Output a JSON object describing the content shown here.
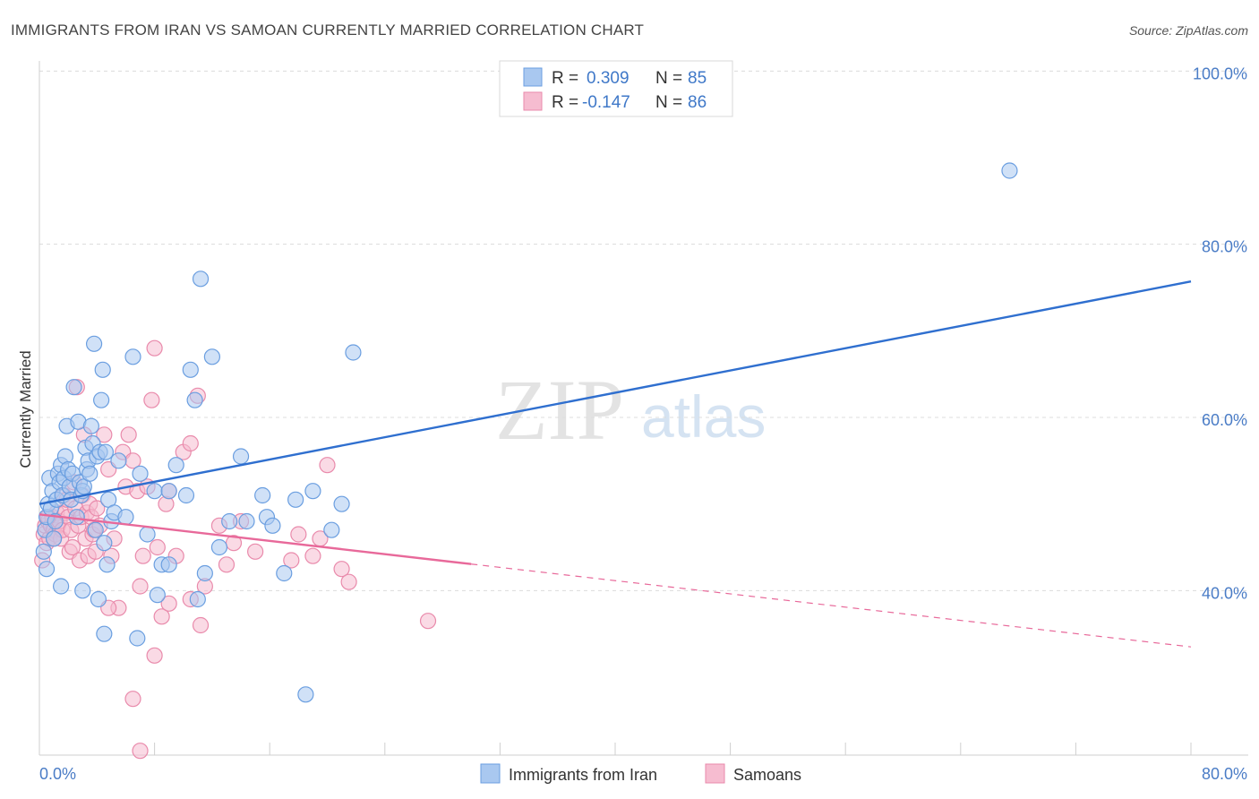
{
  "title": "IMMIGRANTS FROM IRAN VS SAMOAN CURRENTLY MARRIED CORRELATION CHART",
  "source": "Source: ZipAtlas.com",
  "watermark": {
    "zip": "ZIP",
    "atlas": "atlas"
  },
  "legend": {
    "r_label": "R =",
    "n_label": "N =",
    "rows": [
      {
        "r": "0.309",
        "n": "85",
        "color": "#a9c8f0",
        "stroke": "#6a9ee0"
      },
      {
        "r": "-0.147",
        "n": "86",
        "color": "#f6bcd0",
        "stroke": "#e98aab"
      }
    ]
  },
  "bottom_legend": [
    {
      "label": "Immigrants from Iran",
      "color": "#a9c8f0",
      "stroke": "#6a9ee0"
    },
    {
      "label": "Samoans",
      "color": "#f6bcd0",
      "stroke": "#e98aab"
    }
  ],
  "chart_data": {
    "type": "scatter",
    "title": "IMMIGRANTS FROM IRAN VS SAMOAN CURRENTLY MARRIED CORRELATION CHART",
    "xlabel": "",
    "ylabel": "Currently Married",
    "xlim": [
      0,
      80
    ],
    "ylim": [
      21,
      102
    ],
    "x_ticks": [
      "0.0%",
      "80.0%"
    ],
    "y_ticks": [
      {
        "value": 40,
        "label": "40.0%"
      },
      {
        "value": 60,
        "label": "60.0%"
      },
      {
        "value": 80,
        "label": "80.0%"
      },
      {
        "value": 100,
        "label": "100.0%"
      }
    ],
    "grid": true,
    "series": [
      {
        "name": "Immigrants from Iran",
        "color": "#a9c8f0",
        "stroke": "#6a9ee0",
        "line_color": "#2f6fcf",
        "trend": {
          "x0": 0,
          "y0": 50.0,
          "x1": 80,
          "y1": 75.7,
          "dash_from": null
        },
        "points": [
          [
            0.3,
            44.5
          ],
          [
            0.4,
            47.0
          ],
          [
            0.5,
            48.5
          ],
          [
            0.6,
            50.0
          ],
          [
            0.7,
            53.0
          ],
          [
            0.8,
            49.5
          ],
          [
            0.9,
            51.5
          ],
          [
            1.0,
            46.0
          ],
          [
            1.1,
            48.0
          ],
          [
            1.2,
            50.5
          ],
          [
            1.3,
            53.5
          ],
          [
            1.4,
            52.5
          ],
          [
            1.5,
            54.5
          ],
          [
            1.6,
            51.0
          ],
          [
            1.7,
            53.0
          ],
          [
            1.8,
            55.5
          ],
          [
            1.9,
            59.0
          ],
          [
            2.0,
            54.0
          ],
          [
            2.1,
            52.0
          ],
          [
            2.2,
            50.5
          ],
          [
            2.3,
            53.5
          ],
          [
            2.4,
            63.5
          ],
          [
            2.6,
            48.5
          ],
          [
            2.7,
            59.5
          ],
          [
            2.8,
            52.5
          ],
          [
            2.9,
            51.0
          ],
          [
            3.0,
            51.5
          ],
          [
            3.1,
            52.0
          ],
          [
            3.2,
            56.5
          ],
          [
            3.3,
            54.0
          ],
          [
            3.4,
            55.0
          ],
          [
            3.5,
            53.5
          ],
          [
            3.6,
            59.0
          ],
          [
            3.7,
            57.0
          ],
          [
            3.8,
            68.5
          ],
          [
            3.9,
            47.0
          ],
          [
            4.0,
            55.5
          ],
          [
            4.1,
            39.0
          ],
          [
            4.2,
            56.0
          ],
          [
            4.3,
            62.0
          ],
          [
            4.4,
            65.5
          ],
          [
            4.5,
            45.5
          ],
          [
            4.6,
            56.0
          ],
          [
            4.7,
            43.0
          ],
          [
            4.8,
            50.5
          ],
          [
            5.0,
            48.0
          ],
          [
            5.2,
            49.0
          ],
          [
            5.5,
            55.0
          ],
          [
            6.0,
            48.5
          ],
          [
            6.5,
            67.0
          ],
          [
            6.8,
            34.5
          ],
          [
            7.0,
            53.5
          ],
          [
            7.5,
            46.5
          ],
          [
            8.0,
            51.5
          ],
          [
            8.5,
            43.0
          ],
          [
            9.0,
            51.5
          ],
          [
            9.5,
            54.5
          ],
          [
            10.2,
            51.0
          ],
          [
            10.5,
            65.5
          ],
          [
            10.8,
            62.0
          ],
          [
            11.2,
            76.0
          ],
          [
            11.5,
            42.0
          ],
          [
            12.0,
            67.0
          ],
          [
            12.5,
            45.0
          ],
          [
            13.2,
            48.0
          ],
          [
            14.0,
            55.5
          ],
          [
            14.4,
            48.0
          ],
          [
            15.5,
            51.0
          ],
          [
            15.8,
            48.5
          ],
          [
            16.2,
            47.5
          ],
          [
            17.0,
            42.0
          ],
          [
            17.8,
            50.5
          ],
          [
            18.5,
            28.0
          ],
          [
            19.0,
            51.5
          ],
          [
            20.3,
            47.0
          ],
          [
            21.0,
            50.0
          ],
          [
            21.8,
            67.5
          ],
          [
            0.5,
            42.5
          ],
          [
            1.5,
            40.5
          ],
          [
            3.0,
            40.0
          ],
          [
            4.5,
            35.0
          ],
          [
            8.2,
            39.5
          ],
          [
            9.0,
            43.0
          ],
          [
            11.0,
            39.0
          ],
          [
            67.4,
            88.5
          ]
        ]
      },
      {
        "name": "Samoans",
        "color": "#f6bcd0",
        "stroke": "#e98aab",
        "line_color": "#e8699a",
        "trend": {
          "x0": 0,
          "y0": 48.8,
          "x1": 80,
          "y1": 33.5,
          "dash_from": 30
        },
        "points": [
          [
            0.2,
            43.5
          ],
          [
            0.3,
            46.5
          ],
          [
            0.4,
            47.5
          ],
          [
            0.5,
            45.5
          ],
          [
            0.6,
            48.0
          ],
          [
            0.7,
            46.0
          ],
          [
            0.8,
            47.5
          ],
          [
            0.9,
            48.5
          ],
          [
            1.0,
            47.0
          ],
          [
            1.1,
            46.5
          ],
          [
            1.2,
            49.0
          ],
          [
            1.3,
            47.5
          ],
          [
            1.4,
            48.0
          ],
          [
            1.5,
            46.0
          ],
          [
            1.6,
            47.0
          ],
          [
            1.7,
            51.0
          ],
          [
            1.8,
            49.0
          ],
          [
            1.9,
            50.5
          ],
          [
            2.0,
            48.5
          ],
          [
            2.1,
            44.5
          ],
          [
            2.2,
            47.0
          ],
          [
            2.3,
            45.0
          ],
          [
            2.4,
            52.5
          ],
          [
            2.5,
            49.5
          ],
          [
            2.6,
            63.5
          ],
          [
            2.7,
            47.5
          ],
          [
            2.8,
            43.5
          ],
          [
            2.9,
            48.5
          ],
          [
            3.0,
            51.0
          ],
          [
            3.1,
            58.0
          ],
          [
            3.2,
            46.0
          ],
          [
            3.3,
            49.0
          ],
          [
            3.4,
            44.0
          ],
          [
            3.5,
            50.0
          ],
          [
            3.6,
            48.5
          ],
          [
            3.7,
            46.5
          ],
          [
            3.8,
            47.0
          ],
          [
            3.9,
            44.5
          ],
          [
            4.0,
            49.5
          ],
          [
            4.2,
            47.5
          ],
          [
            4.5,
            58.0
          ],
          [
            4.8,
            54.0
          ],
          [
            5.0,
            44.0
          ],
          [
            5.2,
            46.0
          ],
          [
            5.5,
            38.0
          ],
          [
            5.8,
            56.0
          ],
          [
            6.0,
            52.0
          ],
          [
            6.2,
            58.0
          ],
          [
            6.5,
            55.0
          ],
          [
            6.8,
            51.5
          ],
          [
            7.0,
            40.5
          ],
          [
            7.2,
            44.0
          ],
          [
            7.5,
            52.0
          ],
          [
            7.8,
            62.0
          ],
          [
            8.0,
            68.0
          ],
          [
            8.2,
            45.0
          ],
          [
            8.5,
            37.0
          ],
          [
            8.8,
            50.0
          ],
          [
            9.0,
            51.5
          ],
          [
            9.5,
            44.0
          ],
          [
            10.0,
            56.0
          ],
          [
            10.5,
            57.0
          ],
          [
            11.0,
            62.5
          ],
          [
            11.2,
            36.0
          ],
          [
            11.5,
            40.5
          ],
          [
            12.5,
            47.5
          ],
          [
            13.0,
            43.0
          ],
          [
            13.5,
            45.5
          ],
          [
            14.0,
            48.0
          ],
          [
            15.0,
            44.5
          ],
          [
            17.5,
            43.5
          ],
          [
            18.0,
            46.5
          ],
          [
            19.0,
            44.0
          ],
          [
            19.5,
            46.0
          ],
          [
            20.0,
            54.5
          ],
          [
            21.0,
            42.5
          ],
          [
            21.5,
            41.0
          ],
          [
            27.0,
            36.5
          ],
          [
            0.6,
            48.5
          ],
          [
            1.0,
            46.0
          ],
          [
            4.8,
            38.0
          ],
          [
            6.5,
            27.5
          ],
          [
            8.0,
            32.5
          ],
          [
            7.0,
            21.5
          ],
          [
            10.5,
            39.0
          ],
          [
            9.0,
            38.5
          ]
        ]
      }
    ]
  }
}
